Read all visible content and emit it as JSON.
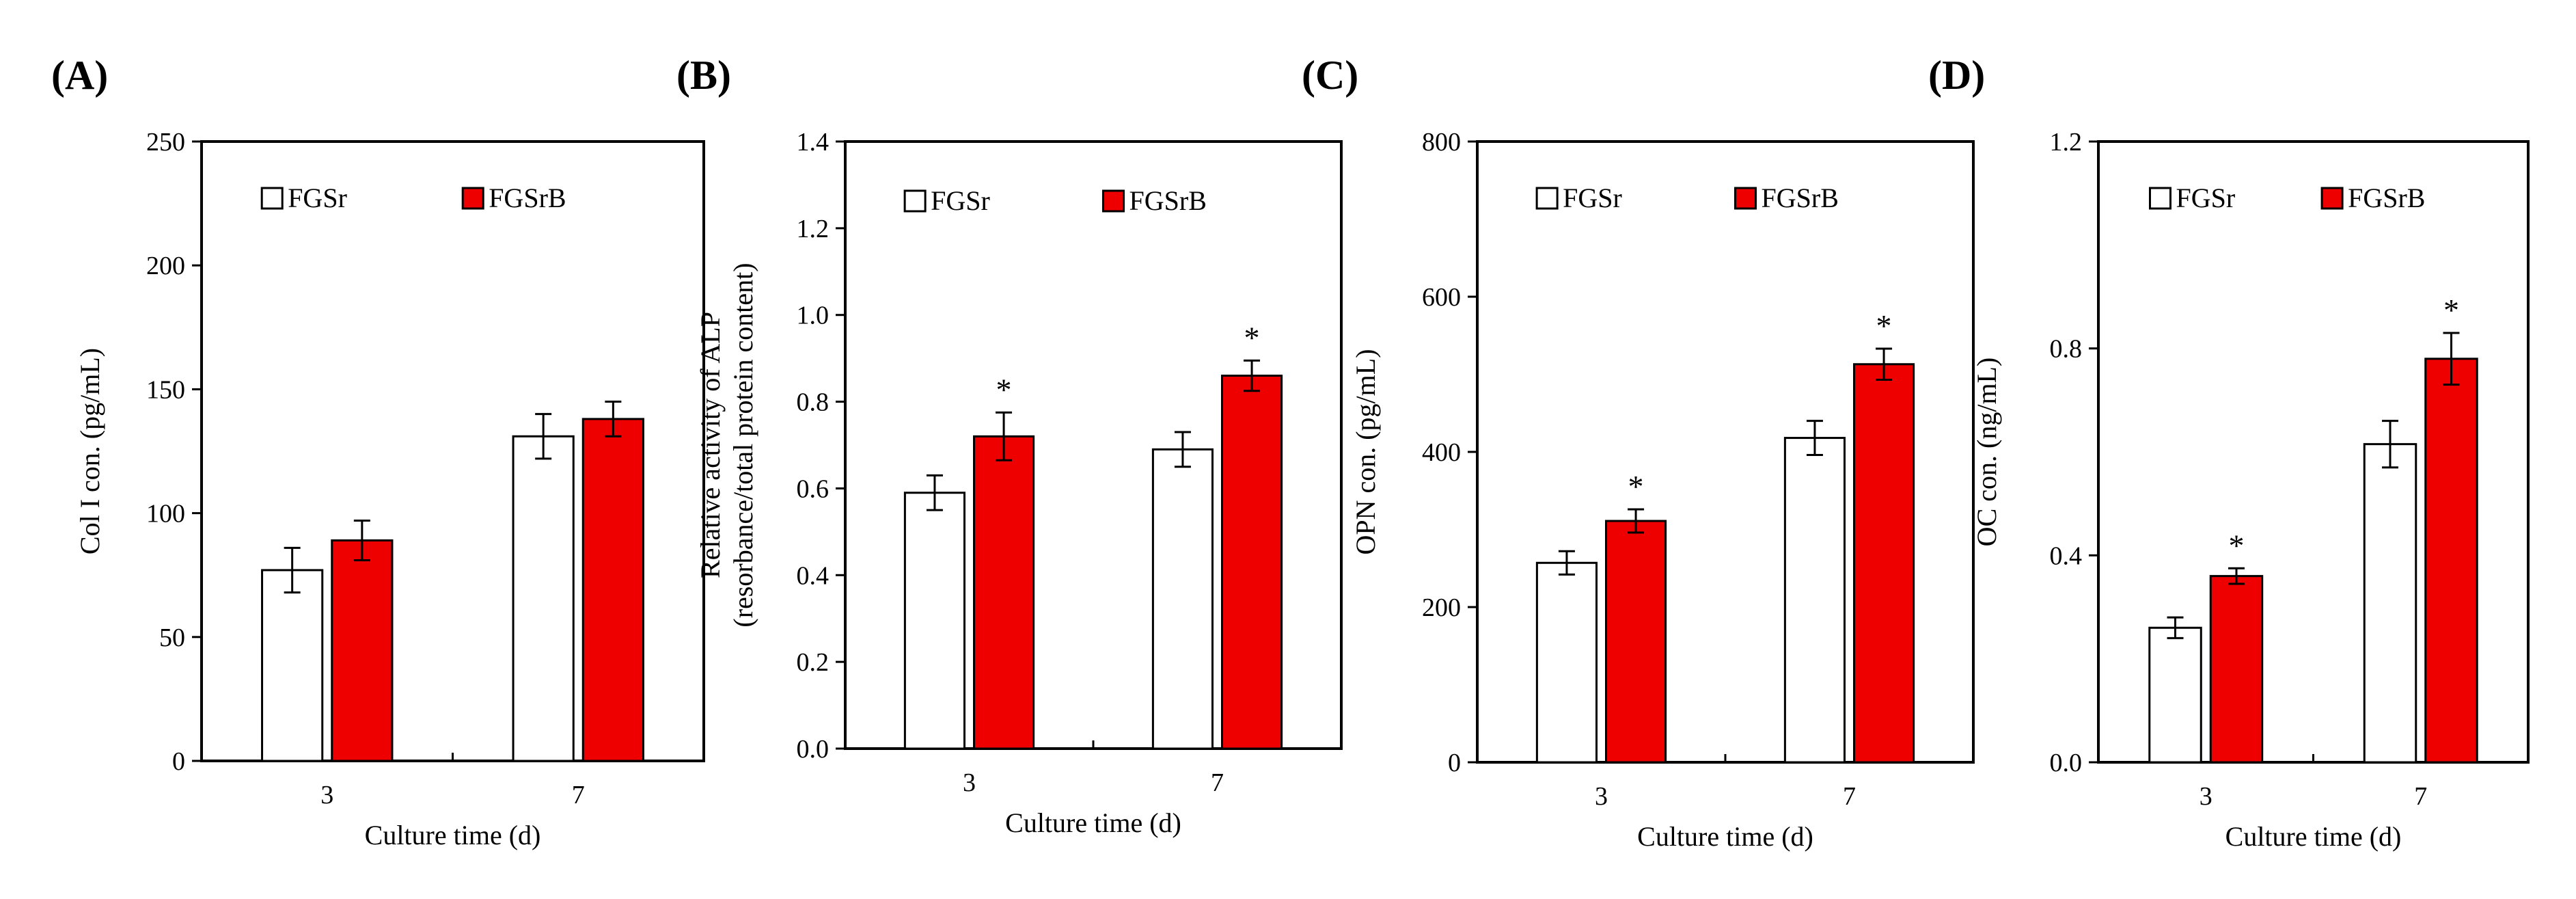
{
  "chart_data": [
    {
      "type": "bar",
      "panel_label": "(A)",
      "categories": [
        "3",
        "7"
      ],
      "series": [
        {
          "name": "FGSr",
          "values": [
            77,
            131
          ],
          "errors": [
            9,
            9
          ]
        },
        {
          "name": "FGSrB",
          "values": [
            89,
            138
          ],
          "errors": [
            8,
            7
          ]
        }
      ],
      "significance": [
        [
          "",
          ""
        ],
        [
          "",
          ""
        ]
      ],
      "xlabel": "Culture time (d)",
      "ylabel": [
        "Col I con. (pg/mL)"
      ],
      "ylim": [
        0,
        250
      ],
      "yticks": [
        "0",
        "50",
        "100",
        "150",
        "200",
        "250"
      ],
      "legend_position": "top"
    },
    {
      "type": "bar",
      "panel_label": "(B)",
      "categories": [
        "3",
        "7"
      ],
      "series": [
        {
          "name": "FGSr",
          "values": [
            0.59,
            0.69
          ],
          "errors": [
            0.04,
            0.04
          ]
        },
        {
          "name": "FGSrB",
          "values": [
            0.72,
            0.86
          ],
          "errors": [
            0.055,
            0.035
          ]
        }
      ],
      "significance": [
        [
          "",
          "*"
        ],
        [
          "",
          "*"
        ]
      ],
      "xlabel": "Culture time (d)",
      "ylabel": [
        "Relative activity of ALP",
        "(resorbance/total protein content)"
      ],
      "ylim": [
        0,
        1.4
      ],
      "yticks": [
        "0.0",
        "0.2",
        "0.4",
        "0.6",
        "0.8",
        "1.0",
        "1.2",
        "1.4"
      ],
      "legend_position": "top"
    },
    {
      "type": "bar",
      "panel_label": "(C)",
      "categories": [
        "3",
        "7"
      ],
      "series": [
        {
          "name": "FGSr",
          "values": [
            257,
            418
          ],
          "errors": [
            15,
            22
          ]
        },
        {
          "name": "FGSrB",
          "values": [
            311,
            513
          ],
          "errors": [
            15,
            20
          ]
        }
      ],
      "significance": [
        [
          "",
          "*"
        ],
        [
          "",
          "*"
        ]
      ],
      "xlabel": "Culture time (d)",
      "ylabel": [
        "OPN con. (pg/mL)"
      ],
      "ylim": [
        0,
        800
      ],
      "yticks": [
        "0",
        "200",
        "400",
        "600",
        "800"
      ],
      "legend_position": "top"
    },
    {
      "type": "bar",
      "panel_label": "(D)",
      "categories": [
        "3",
        "7"
      ],
      "series": [
        {
          "name": "FGSr",
          "values": [
            0.26,
            0.615
          ],
          "errors": [
            0.02,
            0.045
          ]
        },
        {
          "name": "FGSrB",
          "values": [
            0.36,
            0.78
          ],
          "errors": [
            0.015,
            0.05
          ]
        }
      ],
      "significance": [
        [
          "",
          "*"
        ],
        [
          "",
          "*"
        ]
      ],
      "xlabel": "Culture time (d)",
      "ylabel": [
        "OC con. (ng/mL)"
      ],
      "ylim": [
        0,
        1.2
      ],
      "yticks": [
        "0.0",
        "0.4",
        "0.8",
        "1.2"
      ],
      "legend_position": "top"
    }
  ],
  "colors": {
    "FGSr": "#ffffff",
    "FGSrB": "#ee0000",
    "stroke": "#000000"
  }
}
